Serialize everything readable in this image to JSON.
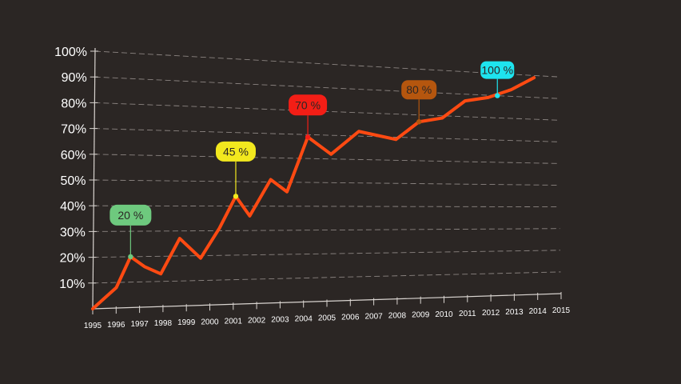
{
  "chart_data": {
    "type": "line",
    "x": [
      "1995",
      "1996",
      "1997",
      "1998",
      "1999",
      "2000",
      "2001",
      "2002",
      "2003",
      "2004",
      "2005",
      "2006",
      "2007",
      "2008",
      "2009",
      "2010",
      "2011",
      "2012",
      "2013",
      "2014",
      "2015"
    ],
    "y_tick_labels": [
      "10%",
      "20%",
      "30%",
      "40%",
      "50%",
      "60%",
      "70%",
      "80%",
      "90%",
      "100%"
    ],
    "ylim": [
      0,
      100
    ],
    "grid": true,
    "series": [
      {
        "color": "#ff4a12",
        "points": [
          {
            "x": 1995.0,
            "y": 0
          },
          {
            "x": 1996.0,
            "y": 8
          },
          {
            "x": 1996.6,
            "y": 20
          },
          {
            "x": 1997.2,
            "y": 16
          },
          {
            "x": 1997.9,
            "y": 13
          },
          {
            "x": 1998.7,
            "y": 27
          },
          {
            "x": 1999.6,
            "y": 19
          },
          {
            "x": 2000.4,
            "y": 31
          },
          {
            "x": 2001.1,
            "y": 44
          },
          {
            "x": 2001.7,
            "y": 36
          },
          {
            "x": 2002.6,
            "y": 51
          },
          {
            "x": 2003.3,
            "y": 46
          },
          {
            "x": 2004.2,
            "y": 69
          },
          {
            "x": 2005.2,
            "y": 62
          },
          {
            "x": 2006.4,
            "y": 72
          },
          {
            "x": 2008.0,
            "y": 69
          },
          {
            "x": 2009.0,
            "y": 77
          },
          {
            "x": 2010.0,
            "y": 79
          },
          {
            "x": 2011.0,
            "y": 87
          },
          {
            "x": 2012.0,
            "y": 89
          },
          {
            "x": 2013.0,
            "y": 93
          },
          {
            "x": 2014.0,
            "y": 99
          }
        ]
      }
    ],
    "annotations": [
      {
        "label": "20 %",
        "x": 1996.6,
        "y": 20,
        "color": "#6ec97e"
      },
      {
        "label": "45 %",
        "x": 2001.1,
        "y": 44,
        "color": "#f2e81e"
      },
      {
        "label": "70 %",
        "x": 2004.2,
        "y": 69,
        "color": "#f31e16"
      },
      {
        "label": "80 %",
        "x": 2009.0,
        "y": 77,
        "color": "#b5560e"
      },
      {
        "label": "100 %",
        "x": 2012.4,
        "y": 90,
        "color": "#1ee4ef"
      }
    ]
  }
}
